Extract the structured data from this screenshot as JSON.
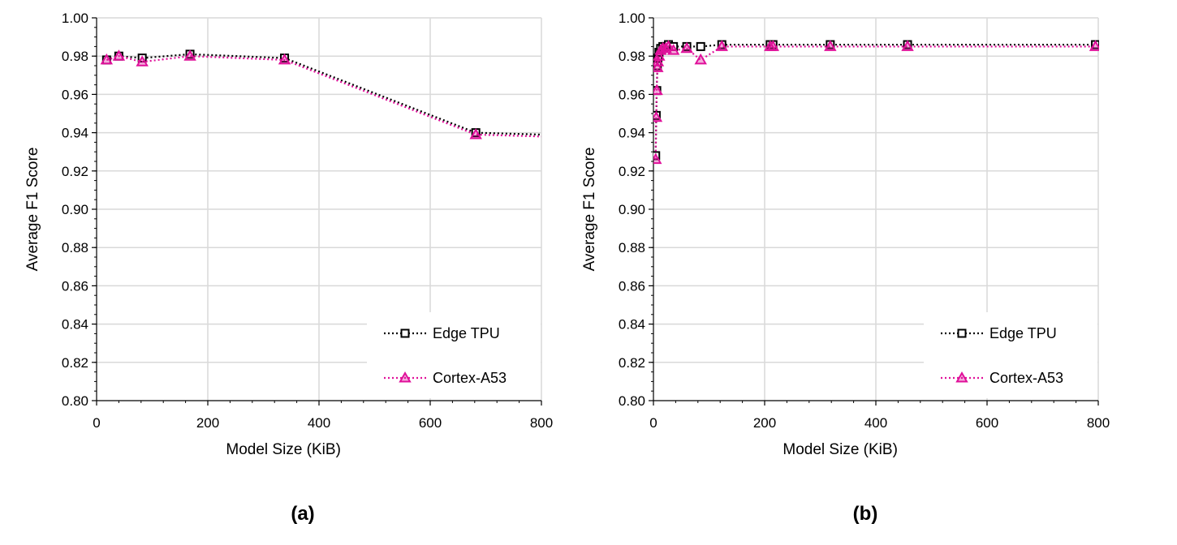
{
  "colors": {
    "edge": "#000000",
    "cortex": "#e0109a",
    "grid": "#d9d9d9"
  },
  "chart_data": [
    {
      "type": "line",
      "panel_label": "(a)",
      "xlabel": "Model Size (KiB)",
      "ylabel": "Average F1 Score",
      "xlim": [
        0,
        800
      ],
      "ylim": [
        0.8,
        1.0
      ],
      "xticks": [
        0,
        200,
        400,
        600,
        800
      ],
      "yticks": [
        0.8,
        0.82,
        0.84,
        0.86,
        0.88,
        0.9,
        0.92,
        0.94,
        0.96,
        0.98,
        1.0
      ],
      "legend_position": "bottom-right",
      "series": [
        {
          "name": "Edge TPU",
          "marker": "square",
          "color": "#000000",
          "x": [
            18,
            40,
            82,
            168,
            338,
            682,
            800
          ],
          "y": [
            0.978,
            0.98,
            0.979,
            0.981,
            0.979,
            0.94,
            0.939
          ]
        },
        {
          "name": "Cortex-A53",
          "marker": "triangle",
          "color": "#e0109a",
          "x": [
            18,
            40,
            82,
            168,
            338,
            682,
            800
          ],
          "y": [
            0.978,
            0.98,
            0.977,
            0.98,
            0.978,
            0.939,
            0.938
          ]
        }
      ]
    },
    {
      "type": "line",
      "panel_label": "(b)",
      "xlabel": "Model Size (KiB)",
      "ylabel": "Average F1 Score",
      "xlim": [
        0,
        800
      ],
      "ylim": [
        0.8,
        1.0
      ],
      "xticks": [
        0,
        200,
        400,
        600,
        800
      ],
      "yticks": [
        0.8,
        0.82,
        0.84,
        0.86,
        0.88,
        0.9,
        0.92,
        0.94,
        0.96,
        0.98,
        1.0
      ],
      "legend_position": "bottom-right",
      "series": [
        {
          "name": "Edge TPU",
          "marker": "square",
          "color": "#000000",
          "x": [
            4,
            5,
            6,
            7,
            8,
            10,
            13,
            17,
            22,
            27,
            36,
            60,
            85,
            123,
            210,
            215,
            318,
            457,
            795
          ],
          "y": [
            0.928,
            0.949,
            0.962,
            0.975,
            0.979,
            0.982,
            0.984,
            0.985,
            0.985,
            0.986,
            0.985,
            0.985,
            0.985,
            0.986,
            0.986,
            0.986,
            0.986,
            0.986,
            0.986
          ]
        },
        {
          "name": "Cortex-A53",
          "marker": "triangle",
          "color": "#e0109a",
          "x": [
            4,
            5,
            6,
            7,
            8,
            10,
            13,
            17,
            22,
            27,
            36,
            60,
            85,
            123,
            210,
            215,
            318,
            457,
            795
          ],
          "y": [
            0.926,
            0.948,
            0.962,
            0.974,
            0.977,
            0.98,
            0.983,
            0.984,
            0.984,
            0.985,
            0.983,
            0.984,
            0.978,
            0.985,
            0.985,
            0.985,
            0.985,
            0.985,
            0.985
          ]
        }
      ]
    }
  ]
}
